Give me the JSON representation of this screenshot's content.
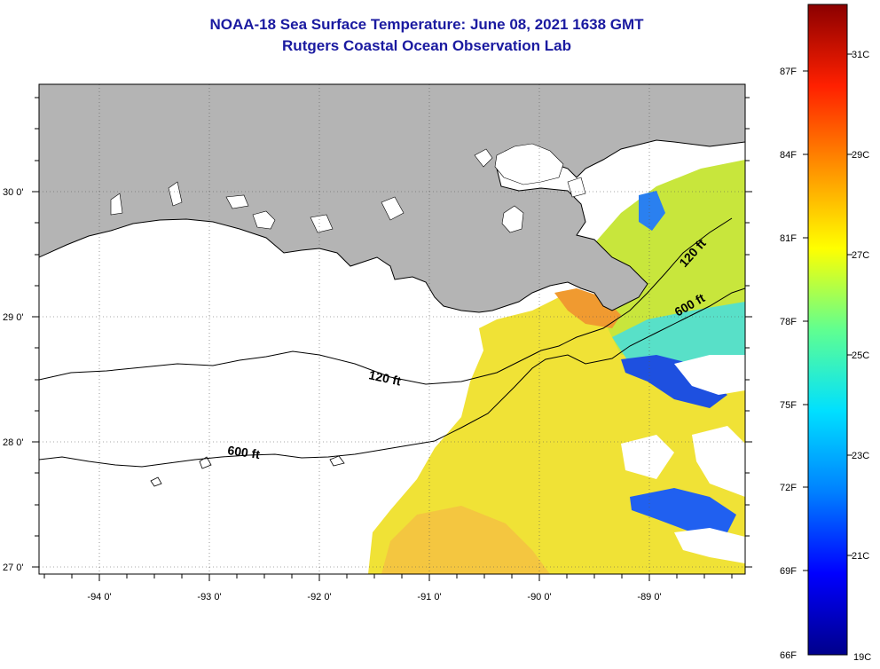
{
  "title": {
    "line1": "NOAA-18 Sea Surface Temperature:  June 08, 2021 1638 GMT",
    "line2": "Rutgers Coastal Ocean Observation Lab"
  },
  "map": {
    "lon_ticks": [
      "-94 0'",
      "-93 0'",
      "-92 0'",
      "-91 0'",
      "-90 0'",
      "-89 0'"
    ],
    "lat_ticks": [
      "30 0'",
      "29 0'",
      "28 0'",
      "27 0'"
    ],
    "contour_labels": [
      "120 ft",
      "600 ft",
      "120 ft",
      "600 ft"
    ],
    "land_color": "#b4b4b4"
  },
  "colorbar": {
    "fahrenheit_labels": [
      "87F",
      "84F",
      "81F",
      "78F",
      "75F",
      "72F",
      "69F",
      "66F"
    ],
    "celsius_labels": [
      "31C",
      "29C",
      "27C",
      "25C",
      "23C",
      "21C",
      "19C"
    ],
    "colors": [
      "#00008b",
      "#0000ff",
      "#0080ff",
      "#00e0ff",
      "#60ff90",
      "#ffff00",
      "#ff9000",
      "#ff2000",
      "#8b0000"
    ]
  }
}
